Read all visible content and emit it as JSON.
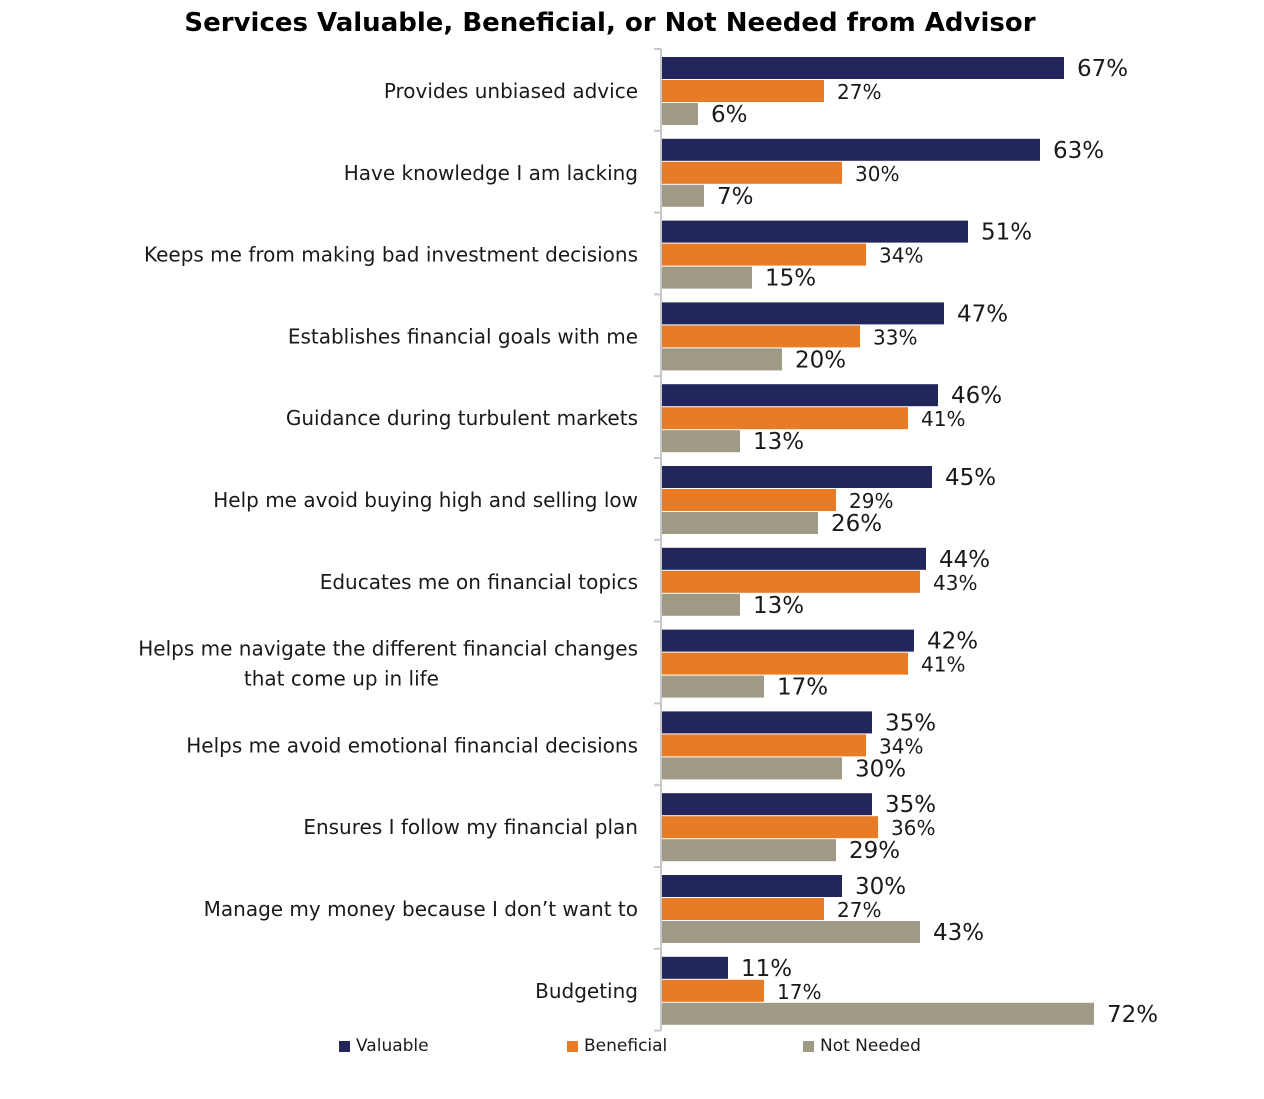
{
  "chart_data": {
    "type": "bar",
    "orientation": "horizontal",
    "title": "Services Valuable, Beneficial, or Not Needed from Advisor",
    "categories": [
      "Provides unbiased advice",
      "Have knowledge I am lacking",
      "Keeps me from making bad investment decisions",
      "Establishes financial goals with me",
      "Guidance during turbulent markets",
      "Help me avoid buying high and selling low",
      "Educates me on financial topics",
      "Helps me navigate the different financial changes that come up in life",
      "Helps me avoid emotional financial decisions",
      "Ensures I follow my financial plan",
      "Manage my money because I don’t want to",
      "Budgeting"
    ],
    "series": [
      {
        "name": "Valuable",
        "color": "#23265a",
        "values": [
          67,
          63,
          51,
          47,
          46,
          45,
          44,
          42,
          35,
          35,
          30,
          11
        ]
      },
      {
        "name": "Beneficial",
        "color": "#e87b26",
        "values": [
          27,
          30,
          34,
          33,
          41,
          29,
          43,
          41,
          34,
          36,
          27,
          17
        ]
      },
      {
        "name": "Not Needed",
        "color": "#9e9a86",
        "values": [
          6,
          7,
          15,
          20,
          13,
          26,
          13,
          17,
          30,
          29,
          43,
          72
        ]
      }
    ],
    "value_suffix": "%",
    "xlim": [
      0,
      100
    ],
    "grid": false,
    "legend_position": "bottom"
  }
}
